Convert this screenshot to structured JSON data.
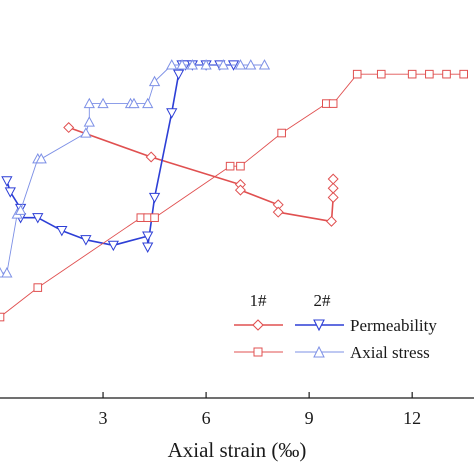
{
  "chart_data": {
    "type": "line",
    "xlabel": "Axial strain (‰)",
    "ylabel": "",
    "title": "",
    "xticks": [
      3,
      6,
      9,
      12
    ],
    "xlim": [
      0,
      13.8
    ],
    "ylim": [
      0,
      1
    ],
    "grid": false,
    "legend": {
      "placement": "lower-right",
      "headers": [
        "1#",
        "2#"
      ],
      "rows": [
        "Permeability",
        "Axial stress"
      ]
    },
    "colors": {
      "red": "#e05050",
      "blue": "#2d3fd6",
      "light_blue": "#7d90e6"
    },
    "series": [
      {
        "specimen": "1#",
        "quantity": "Permeability",
        "marker": "diamond",
        "color": "#e05050",
        "points": [
          [
            2.0,
            0.735
          ],
          [
            4.4,
            0.655
          ],
          [
            7.0,
            0.58
          ],
          [
            7.0,
            0.565
          ],
          [
            8.1,
            0.525
          ],
          [
            8.1,
            0.505
          ],
          [
            9.65,
            0.48
          ],
          [
            9.7,
            0.545
          ],
          [
            9.7,
            0.57
          ],
          [
            9.7,
            0.595
          ]
        ]
      },
      {
        "specimen": "2#",
        "quantity": "Permeability",
        "marker": "triangle-down",
        "color": "#2d3fd6",
        "points": [
          [
            0.2,
            0.59
          ],
          [
            0.3,
            0.56
          ],
          [
            0.6,
            0.515
          ],
          [
            0.6,
            0.49
          ],
          [
            1.1,
            0.49
          ],
          [
            1.8,
            0.455
          ],
          [
            2.5,
            0.43
          ],
          [
            3.3,
            0.415
          ],
          [
            4.3,
            0.44
          ],
          [
            4.3,
            0.41
          ],
          [
            4.5,
            0.545
          ],
          [
            5.0,
            0.775
          ],
          [
            5.2,
            0.88
          ],
          [
            5.3,
            0.905
          ],
          [
            5.4,
            0.905
          ],
          [
            5.6,
            0.905
          ],
          [
            6.0,
            0.905
          ],
          [
            6.4,
            0.905
          ],
          [
            6.8,
            0.905
          ]
        ]
      },
      {
        "specimen": "1#",
        "quantity": "Axial stress",
        "marker": "square",
        "color": "#e05050",
        "points": [
          [
            0.0,
            0.22
          ],
          [
            1.1,
            0.3
          ],
          [
            4.1,
            0.49
          ],
          [
            4.3,
            0.49
          ],
          [
            4.5,
            0.49
          ],
          [
            6.7,
            0.63
          ],
          [
            7.0,
            0.63
          ],
          [
            8.2,
            0.72
          ],
          [
            9.5,
            0.8
          ],
          [
            9.7,
            0.8
          ],
          [
            10.4,
            0.88
          ],
          [
            11.1,
            0.88
          ],
          [
            12.0,
            0.88
          ],
          [
            12.5,
            0.88
          ],
          [
            13.0,
            0.88
          ],
          [
            13.5,
            0.88
          ]
        ]
      },
      {
        "specimen": "2#",
        "quantity": "Axial stress",
        "marker": "triangle-up",
        "color": "#7d90e6",
        "points": [
          [
            0.0,
            0.34
          ],
          [
            0.2,
            0.34
          ],
          [
            0.5,
            0.5
          ],
          [
            0.6,
            0.51
          ],
          [
            1.1,
            0.65
          ],
          [
            1.2,
            0.65
          ],
          [
            2.5,
            0.72
          ],
          [
            2.6,
            0.75
          ],
          [
            2.6,
            0.8
          ],
          [
            3.0,
            0.8
          ],
          [
            3.8,
            0.8
          ],
          [
            3.9,
            0.8
          ],
          [
            4.3,
            0.8
          ],
          [
            4.5,
            0.86
          ],
          [
            5.0,
            0.905
          ],
          [
            5.3,
            0.905
          ],
          [
            5.6,
            0.905
          ],
          [
            6.0,
            0.905
          ],
          [
            6.5,
            0.905
          ],
          [
            7.0,
            0.905
          ],
          [
            7.3,
            0.905
          ],
          [
            7.7,
            0.905
          ]
        ]
      }
    ]
  }
}
